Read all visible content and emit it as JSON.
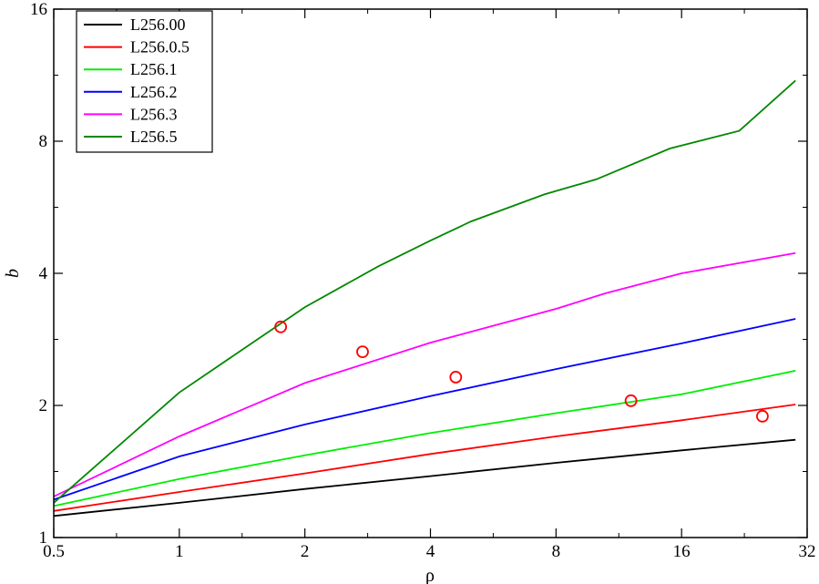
{
  "chart_data": {
    "type": "line",
    "xlabel": "ρ",
    "ylabel": "b",
    "xscale": "log2",
    "yscale": "log2",
    "xlim": [
      0.5,
      32
    ],
    "ylim": [
      1,
      16
    ],
    "xticks": [
      {
        "value": 0.5,
        "label": "0.5"
      },
      {
        "value": 1,
        "label": "1"
      },
      {
        "value": 2,
        "label": "2"
      },
      {
        "value": 4,
        "label": "4"
      },
      {
        "value": 8,
        "label": "8"
      },
      {
        "value": 16,
        "label": "16"
      },
      {
        "value": 32,
        "label": "32"
      }
    ],
    "yticks": [
      {
        "value": 1,
        "label": "1"
      },
      {
        "value": 2,
        "label": "2"
      },
      {
        "value": 4,
        "label": "4"
      },
      {
        "value": 8,
        "label": "8"
      },
      {
        "value": 16,
        "label": "16"
      }
    ],
    "grid": false,
    "legend_position": "top-left",
    "series": [
      {
        "name": "L256.00",
        "color": "#000000",
        "x": [
          0.5,
          1,
          2,
          4,
          8,
          16,
          30
        ],
        "y": [
          1.12,
          1.2,
          1.29,
          1.38,
          1.48,
          1.58,
          1.67
        ]
      },
      {
        "name": "L256.0.5",
        "color": "#ff0000",
        "x": [
          0.5,
          1,
          2,
          4,
          8,
          16,
          30
        ],
        "y": [
          1.15,
          1.27,
          1.4,
          1.55,
          1.7,
          1.85,
          2.01
        ]
      },
      {
        "name": "L256.1",
        "color": "#00ee00",
        "x": [
          0.5,
          1,
          2,
          4,
          8,
          16,
          30
        ],
        "y": [
          1.18,
          1.36,
          1.54,
          1.73,
          1.92,
          2.12,
          2.4
        ]
      },
      {
        "name": "L256.2",
        "color": "#0000ff",
        "x": [
          0.5,
          1,
          2,
          4,
          8,
          16,
          30
        ],
        "y": [
          1.22,
          1.53,
          1.81,
          2.1,
          2.42,
          2.77,
          3.15
        ]
      },
      {
        "name": "L256.3",
        "color": "#ff00ff",
        "x": [
          0.5,
          1,
          2,
          4,
          8,
          10.5,
          16,
          30
        ],
        "y": [
          1.24,
          1.7,
          2.25,
          2.78,
          3.32,
          3.6,
          4.0,
          4.45
        ]
      },
      {
        "name": "L256.5",
        "color": "#008800",
        "x": [
          0.5,
          1,
          2,
          3,
          4,
          5,
          7.5,
          10,
          15,
          22,
          30
        ],
        "y": [
          1.2,
          2.14,
          3.35,
          4.15,
          4.75,
          5.25,
          6.05,
          6.55,
          7.7,
          8.45,
          11.0
        ]
      }
    ],
    "markers": {
      "style": "open-circle",
      "color": "#ff0000",
      "points": [
        {
          "x": 1.75,
          "y": 3.02
        },
        {
          "x": 2.75,
          "y": 2.65
        },
        {
          "x": 4.6,
          "y": 2.32
        },
        {
          "x": 12.1,
          "y": 2.05
        },
        {
          "x": 25.0,
          "y": 1.89
        }
      ]
    }
  }
}
